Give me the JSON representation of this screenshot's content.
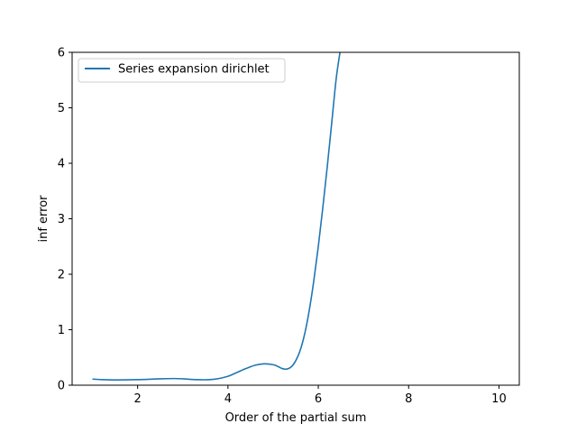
{
  "chart_data": {
    "type": "line",
    "title": "",
    "xlabel": "Order of the partial sum",
    "ylabel": "inf error",
    "xlim": [
      0.55,
      10.45
    ],
    "ylim": [
      0,
      6
    ],
    "x_ticks": [
      2,
      4,
      6,
      8,
      10
    ],
    "y_ticks": [
      0,
      1,
      2,
      3,
      4,
      5,
      6
    ],
    "grid": false,
    "legend_position": "top-left",
    "series": [
      {
        "name": "Series expansion dirichlet",
        "color": "#1f77b4",
        "x": [
          1.0,
          1.2,
          1.5,
          2.0,
          2.5,
          2.8,
          3.0,
          3.3,
          3.6,
          3.8,
          4.0,
          4.2,
          4.4,
          4.6,
          4.8,
          5.0,
          5.1,
          5.2,
          5.3,
          5.4,
          5.5,
          5.6,
          5.7,
          5.8,
          5.9,
          6.0,
          6.1,
          6.2,
          6.3,
          6.4,
          6.5
        ],
        "y": [
          0.11,
          0.1,
          0.095,
          0.1,
          0.115,
          0.12,
          0.115,
          0.1,
          0.1,
          0.12,
          0.16,
          0.23,
          0.3,
          0.36,
          0.385,
          0.37,
          0.34,
          0.3,
          0.29,
          0.33,
          0.44,
          0.63,
          0.93,
          1.35,
          1.88,
          2.5,
          3.2,
          3.95,
          4.75,
          5.55,
          6.1
        ]
      }
    ]
  }
}
